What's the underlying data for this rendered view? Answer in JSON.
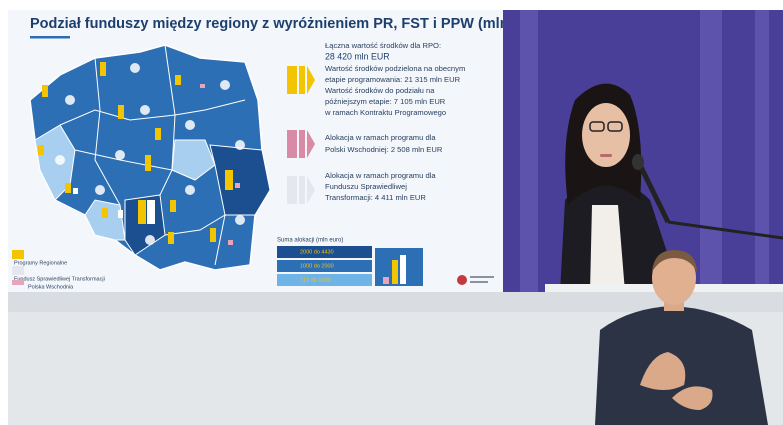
{
  "slide": {
    "title": "Podział funduszy między regiony z wyróżnieniem PR, FST i PPW (mln EUR)",
    "info": [
      "Łączna wartość środków dla RPO:",
      "28 420 mln EUR",
      "Wartość środków podzielona na obecnym",
      "etapie programowania:  21 315 mln EUR",
      "Wartość środków do podziału na",
      "późniejszym etapie:  7 105 mln EUR",
      "w ramach Kontraktu Programowego",
      "Alokacja w ramach programu dla",
      "Polski Wschodniej:  2 508 mln EUR",
      "Alokacja w ramach programu dla",
      "Funduszu Sprawiedliwej",
      "Transformacji:  4 411 mln EUR"
    ],
    "legend": [
      "Programy Regionalne",
      "Fundusz Sprawiedliwej Transformacji",
      "Polska Wschodnia"
    ],
    "scale": {
      "title": "Suma alokacji (mln euro)",
      "items": [
        "2000 do 4430",
        "1000 do 2000",
        "712 do 1000"
      ]
    }
  }
}
